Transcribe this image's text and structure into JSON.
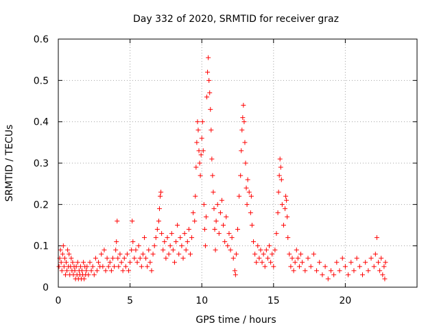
{
  "chart_data": {
    "type": "scatter",
    "title": "Day 332 of 2020, SRMTID for receiver graz",
    "xlabel": "GPS time / hours",
    "ylabel": "SRMTID / TECUs",
    "xlim": [
      0,
      25
    ],
    "ylim": [
      0,
      0.6
    ],
    "x_ticks": [
      0,
      5,
      10,
      15,
      20
    ],
    "x_tick_labels": [
      "0",
      "5",
      "10",
      "15",
      "20"
    ],
    "y_ticks": [
      0,
      0.1,
      0.2,
      0.3,
      0.4,
      0.5,
      0.6
    ],
    "y_tick_labels": [
      "0",
      "0.1",
      "0.2",
      "0.3",
      "0.4",
      "0.5",
      "0.6"
    ],
    "grid": true,
    "marker": "+",
    "color": "#ff0000",
    "series": [
      {
        "name": "SRMTID",
        "points": [
          [
            0.05,
            0.05
          ],
          [
            0.1,
            0.07
          ],
          [
            0.15,
            0.09
          ],
          [
            0.2,
            0.06
          ],
          [
            0.25,
            0.04
          ],
          [
            0.3,
            0.08
          ],
          [
            0.35,
            0.1
          ],
          [
            0.4,
            0.05
          ],
          [
            0.45,
            0.07
          ],
          [
            0.5,
            0.03
          ],
          [
            0.55,
            0.06
          ],
          [
            0.6,
            0.04
          ],
          [
            0.65,
            0.09
          ],
          [
            0.7,
            0.05
          ],
          [
            0.75,
            0.08
          ],
          [
            0.8,
            0.03
          ],
          [
            0.85,
            0.05
          ],
          [
            0.9,
            0.07
          ],
          [
            0.95,
            0.04
          ],
          [
            1.0,
            0.06
          ],
          [
            1.05,
            0.03
          ],
          [
            1.1,
            0.05
          ],
          [
            1.15,
            0.04
          ],
          [
            1.2,
            0.02
          ],
          [
            1.25,
            0.05
          ],
          [
            1.3,
            0.03
          ],
          [
            1.35,
            0.06
          ],
          [
            1.4,
            0.02
          ],
          [
            1.45,
            0.04
          ],
          [
            1.5,
            0.03
          ],
          [
            1.55,
            0.05
          ],
          [
            1.6,
            0.02
          ],
          [
            1.65,
            0.04
          ],
          [
            1.7,
            0.03
          ],
          [
            1.75,
            0.06
          ],
          [
            1.8,
            0.02
          ],
          [
            1.85,
            0.05
          ],
          [
            1.9,
            0.03
          ],
          [
            1.95,
            0.04
          ],
          [
            2.0,
            0.05
          ],
          [
            2.1,
            0.03
          ],
          [
            2.2,
            0.06
          ],
          [
            2.3,
            0.04
          ],
          [
            2.4,
            0.05
          ],
          [
            2.5,
            0.03
          ],
          [
            2.6,
            0.07
          ],
          [
            2.7,
            0.04
          ],
          [
            2.8,
            0.06
          ],
          [
            2.9,
            0.05
          ],
          [
            3.0,
            0.08
          ],
          [
            3.1,
            0.05
          ],
          [
            3.2,
            0.09
          ],
          [
            3.3,
            0.04
          ],
          [
            3.4,
            0.07
          ],
          [
            3.5,
            0.05
          ],
          [
            3.6,
            0.06
          ],
          [
            3.7,
            0.04
          ],
          [
            3.8,
            0.07
          ],
          [
            3.9,
            0.05
          ],
          [
            4.0,
            0.09
          ],
          [
            4.05,
            0.11
          ],
          [
            4.1,
            0.16
          ],
          [
            4.15,
            0.07
          ],
          [
            4.2,
            0.05
          ],
          [
            4.3,
            0.08
          ],
          [
            4.4,
            0.06
          ],
          [
            4.5,
            0.04
          ],
          [
            4.6,
            0.07
          ],
          [
            4.7,
            0.05
          ],
          [
            4.8,
            0.08
          ],
          [
            4.9,
            0.04
          ],
          [
            5.0,
            0.06
          ],
          [
            5.1,
            0.09
          ],
          [
            5.15,
            0.16
          ],
          [
            5.2,
            0.11
          ],
          [
            5.3,
            0.07
          ],
          [
            5.4,
            0.09
          ],
          [
            5.5,
            0.06
          ],
          [
            5.6,
            0.1
          ],
          [
            5.7,
            0.07
          ],
          [
            5.8,
            0.05
          ],
          [
            5.9,
            0.08
          ],
          [
            6.0,
            0.12
          ],
          [
            6.1,
            0.07
          ],
          [
            6.2,
            0.05
          ],
          [
            6.3,
            0.09
          ],
          [
            6.4,
            0.06
          ],
          [
            6.5,
            0.04
          ],
          [
            6.6,
            0.08
          ],
          [
            6.7,
            0.1
          ],
          [
            6.8,
            0.12
          ],
          [
            6.9,
            0.14
          ],
          [
            7.0,
            0.16
          ],
          [
            7.05,
            0.19
          ],
          [
            7.1,
            0.22
          ],
          [
            7.15,
            0.23
          ],
          [
            7.2,
            0.13
          ],
          [
            7.3,
            0.09
          ],
          [
            7.4,
            0.11
          ],
          [
            7.5,
            0.07
          ],
          [
            7.6,
            0.12
          ],
          [
            7.7,
            0.08
          ],
          [
            7.8,
            0.1
          ],
          [
            7.9,
            0.13
          ],
          [
            8.0,
            0.09
          ],
          [
            8.1,
            0.06
          ],
          [
            8.2,
            0.11
          ],
          [
            8.3,
            0.15
          ],
          [
            8.4,
            0.08
          ],
          [
            8.5,
            0.12
          ],
          [
            8.6,
            0.1
          ],
          [
            8.7,
            0.07
          ],
          [
            8.8,
            0.13
          ],
          [
            8.9,
            0.09
          ],
          [
            9.0,
            0.11
          ],
          [
            9.1,
            0.14
          ],
          [
            9.2,
            0.08
          ],
          [
            9.3,
            0.12
          ],
          [
            9.4,
            0.18
          ],
          [
            9.5,
            0.16
          ],
          [
            9.55,
            0.22
          ],
          [
            9.6,
            0.29
          ],
          [
            9.65,
            0.35
          ],
          [
            9.7,
            0.4
          ],
          [
            9.75,
            0.38
          ],
          [
            9.8,
            0.33
          ],
          [
            9.85,
            0.3
          ],
          [
            9.9,
            0.27
          ],
          [
            9.95,
            0.32
          ],
          [
            10.0,
            0.36
          ],
          [
            10.05,
            0.4
          ],
          [
            10.1,
            0.33
          ],
          [
            10.15,
            0.2
          ],
          [
            10.2,
            0.14
          ],
          [
            10.25,
            0.1
          ],
          [
            10.3,
            0.17
          ],
          [
            10.35,
            0.46
          ],
          [
            10.4,
            0.52
          ],
          [
            10.45,
            0.555
          ],
          [
            10.5,
            0.5
          ],
          [
            10.55,
            0.47
          ],
          [
            10.6,
            0.43
          ],
          [
            10.65,
            0.38
          ],
          [
            10.7,
            0.31
          ],
          [
            10.75,
            0.27
          ],
          [
            10.8,
            0.23
          ],
          [
            10.85,
            0.19
          ],
          [
            10.9,
            0.14
          ],
          [
            10.95,
            0.09
          ],
          [
            11.0,
            0.16
          ],
          [
            11.1,
            0.2
          ],
          [
            11.2,
            0.13
          ],
          [
            11.3,
            0.18
          ],
          [
            11.4,
            0.21
          ],
          [
            11.5,
            0.15
          ],
          [
            11.6,
            0.11
          ],
          [
            11.7,
            0.17
          ],
          [
            11.8,
            0.1
          ],
          [
            11.9,
            0.13
          ],
          [
            12.0,
            0.09
          ],
          [
            12.1,
            0.12
          ],
          [
            12.2,
            0.07
          ],
          [
            12.3,
            0.04
          ],
          [
            12.35,
            0.03
          ],
          [
            12.4,
            0.08
          ],
          [
            12.5,
            0.14
          ],
          [
            12.6,
            0.22
          ],
          [
            12.7,
            0.27
          ],
          [
            12.75,
            0.33
          ],
          [
            12.8,
            0.38
          ],
          [
            12.85,
            0.41
          ],
          [
            12.9,
            0.44
          ],
          [
            12.95,
            0.4
          ],
          [
            13.0,
            0.35
          ],
          [
            13.05,
            0.3
          ],
          [
            13.1,
            0.24
          ],
          [
            13.15,
            0.2
          ],
          [
            13.2,
            0.26
          ],
          [
            13.3,
            0.23
          ],
          [
            13.4,
            0.18
          ],
          [
            13.45,
            0.22
          ],
          [
            13.5,
            0.15
          ],
          [
            13.6,
            0.11
          ],
          [
            13.7,
            0.08
          ],
          [
            13.8,
            0.06
          ],
          [
            13.9,
            0.1
          ],
          [
            14.0,
            0.07
          ],
          [
            14.1,
            0.09
          ],
          [
            14.2,
            0.06
          ],
          [
            14.3,
            0.08
          ],
          [
            14.4,
            0.05
          ],
          [
            14.5,
            0.09
          ],
          [
            14.6,
            0.07
          ],
          [
            14.7,
            0.1
          ],
          [
            14.8,
            0.06
          ],
          [
            14.9,
            0.08
          ],
          [
            15.0,
            0.05
          ],
          [
            15.1,
            0.09
          ],
          [
            15.2,
            0.13
          ],
          [
            15.3,
            0.18
          ],
          [
            15.35,
            0.23
          ],
          [
            15.4,
            0.27
          ],
          [
            15.45,
            0.31
          ],
          [
            15.5,
            0.29
          ],
          [
            15.55,
            0.26
          ],
          [
            15.6,
            0.2
          ],
          [
            15.7,
            0.15
          ],
          [
            15.8,
            0.19
          ],
          [
            15.85,
            0.22
          ],
          [
            15.9,
            0.21
          ],
          [
            15.95,
            0.17
          ],
          [
            16.0,
            0.12
          ],
          [
            16.1,
            0.08
          ],
          [
            16.2,
            0.05
          ],
          [
            16.3,
            0.07
          ],
          [
            16.4,
            0.04
          ],
          [
            16.5,
            0.06
          ],
          [
            16.6,
            0.09
          ],
          [
            16.7,
            0.07
          ],
          [
            16.8,
            0.05
          ],
          [
            16.9,
            0.08
          ],
          [
            17.0,
            0.06
          ],
          [
            17.2,
            0.04
          ],
          [
            17.4,
            0.07
          ],
          [
            17.6,
            0.05
          ],
          [
            17.8,
            0.08
          ],
          [
            18.0,
            0.04
          ],
          [
            18.2,
            0.06
          ],
          [
            18.4,
            0.03
          ],
          [
            18.6,
            0.05
          ],
          [
            18.8,
            0.02
          ],
          [
            19.0,
            0.04
          ],
          [
            19.2,
            0.03
          ],
          [
            19.4,
            0.06
          ],
          [
            19.6,
            0.04
          ],
          [
            19.8,
            0.07
          ],
          [
            20.0,
            0.05
          ],
          [
            20.2,
            0.03
          ],
          [
            20.4,
            0.06
          ],
          [
            20.6,
            0.04
          ],
          [
            20.8,
            0.07
          ],
          [
            21.0,
            0.05
          ],
          [
            21.2,
            0.03
          ],
          [
            21.4,
            0.06
          ],
          [
            21.6,
            0.04
          ],
          [
            21.8,
            0.07
          ],
          [
            22.0,
            0.05
          ],
          [
            22.1,
            0.08
          ],
          [
            22.2,
            0.12
          ],
          [
            22.3,
            0.06
          ],
          [
            22.4,
            0.04
          ],
          [
            22.5,
            0.07
          ],
          [
            22.6,
            0.03
          ],
          [
            22.7,
            0.05
          ],
          [
            22.75,
            0.02
          ],
          [
            22.8,
            0.06
          ]
        ]
      }
    ]
  }
}
